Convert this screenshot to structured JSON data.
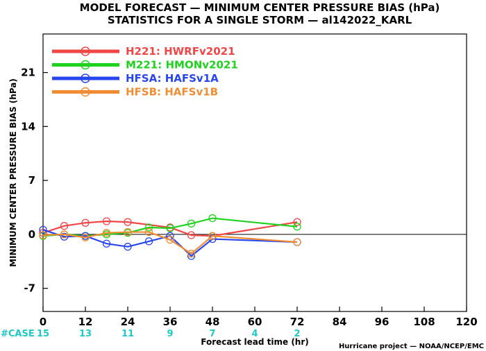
{
  "chart_data": {
    "type": "line",
    "title": "MODEL FORECAST — MINIMUM CENTER PRESSURE BIAS (hPa)",
    "subtitle": "STATISTICS FOR A SINGLE STORM — al142022_KARL",
    "xlabel": "Forecast lead time (hr)",
    "ylabel": "MINIMUM CENTER PRESSURE BIAS (hPa)",
    "xlim": [
      0,
      120
    ],
    "ylim": [
      -10,
      26
    ],
    "x_ticks": [
      0,
      12,
      24,
      36,
      48,
      60,
      72,
      84,
      96,
      108,
      120
    ],
    "y_ticks": [
      -7,
      0,
      7,
      14,
      21
    ],
    "zero_line": true,
    "legend_position": "top-left",
    "series": [
      {
        "name": "H221: HWRFv2021",
        "color": "#f04646",
        "x": [
          0,
          6,
          12,
          18,
          24,
          36,
          42,
          48,
          72
        ],
        "y": [
          0.2,
          1.1,
          1.5,
          1.7,
          1.6,
          0.9,
          -0.1,
          -0.2,
          1.6
        ]
      },
      {
        "name": "M221: HMONv2021",
        "color": "#1ed21e",
        "x": [
          0,
          6,
          12,
          18,
          24,
          30,
          36,
          42,
          48,
          72
        ],
        "y": [
          -0.2,
          0.0,
          -0.2,
          0.0,
          0.2,
          0.9,
          0.8,
          1.4,
          2.1,
          1.0
        ]
      },
      {
        "name": "HFSA: HAFSv1A",
        "color": "#2846f0",
        "x": [
          0,
          6,
          12,
          18,
          24,
          30,
          36,
          42,
          48,
          72
        ],
        "y": [
          0.6,
          -0.3,
          -0.2,
          -1.2,
          -1.6,
          -0.9,
          -0.2,
          -2.8,
          -0.6,
          -1.0
        ]
      },
      {
        "name": "HFSB: HAFSv1B",
        "color": "#f08c32",
        "x": [
          0,
          6,
          12,
          18,
          24,
          30,
          36,
          42,
          48,
          72
        ],
        "y": [
          -0.1,
          0.0,
          -0.4,
          0.2,
          0.3,
          0.3,
          -0.7,
          -2.5,
          -0.2,
          -1.0
        ]
      }
    ],
    "cases": {
      "label": "#CASE",
      "x": [
        0,
        12,
        24,
        36,
        48,
        60,
        72
      ],
      "counts": [
        "15",
        "13",
        "11",
        "9",
        "7",
        "4",
        "2"
      ],
      "colors": [
        "#1ec8c8",
        "#1ec8c8",
        "#1ec8c8",
        "#1ec8c8",
        "#1ec8c8",
        "#1ec8c8",
        "#1ec8c8"
      ]
    },
    "footer": "Hurricane project — NOAA/NCEP/EMC"
  }
}
